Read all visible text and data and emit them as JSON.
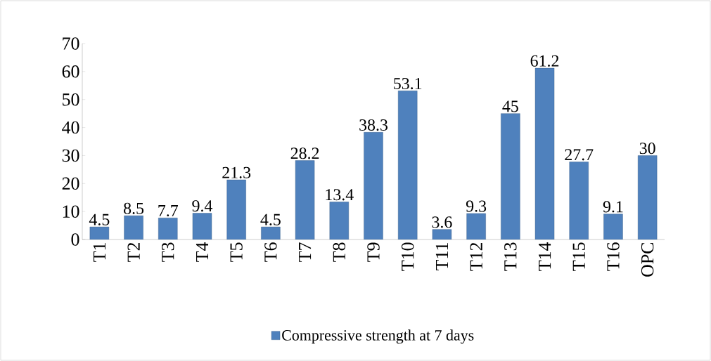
{
  "chart_data": {
    "type": "bar",
    "categories": [
      "T1",
      "T2",
      "T3",
      "T4",
      "T5",
      "T6",
      "T7",
      "T8",
      "T9",
      "T10",
      "T11",
      "T12",
      "T13",
      "T14",
      "T15",
      "T16",
      "OPC"
    ],
    "series": [
      {
        "name": "Compressive strength at 7 days",
        "color": "#4f81bd",
        "values": [
          4.5,
          8.5,
          7.7,
          9.4,
          21.3,
          4.5,
          28.2,
          13.4,
          38.3,
          53.1,
          3.6,
          9.3,
          45,
          61.2,
          27.7,
          9.1,
          30
        ],
        "value_labels": [
          "4.5",
          "8.5",
          "7.7",
          "9.4",
          "21.3",
          "4.5",
          "28.2",
          "13.4",
          "38.3",
          "53.1",
          "3.6",
          "9.3",
          "45",
          "61.2",
          "27.7",
          "9.1",
          "30"
        ]
      }
    ],
    "ylim": [
      0,
      70
    ],
    "yticks": [
      0,
      10,
      20,
      30,
      40,
      50,
      60,
      70
    ],
    "legend": "bottom",
    "grid": false
  }
}
